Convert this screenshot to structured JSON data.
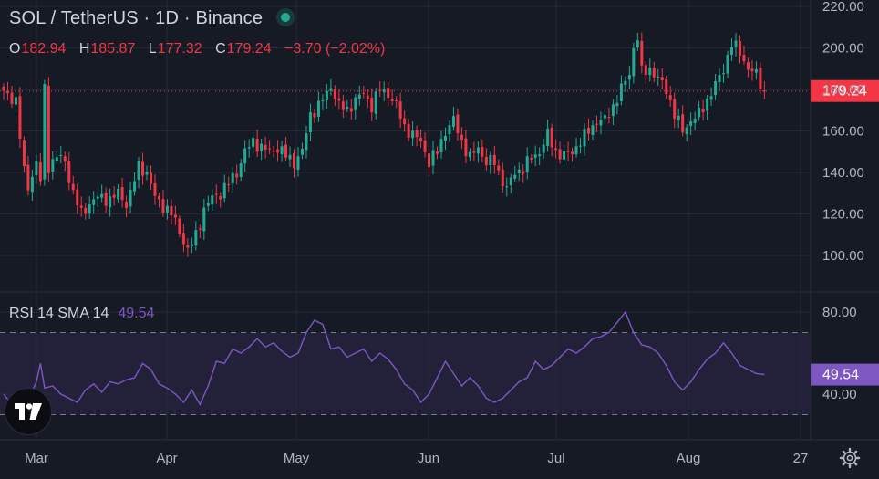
{
  "header": {
    "title": "SOL / TetherUS · 1D · Binance",
    "status_color": "#22ab94"
  },
  "ohlc": {
    "o_label": "O",
    "o_value": "182.94",
    "h_label": "H",
    "h_value": "185.87",
    "l_label": "L",
    "l_value": "177.32",
    "c_label": "C",
    "c_value": "179.24",
    "change": "−3.70 (−2.02%)"
  },
  "rsi_panel": {
    "label": "RSI 14 SMA 14",
    "value": "49.54"
  },
  "colors": {
    "up": "#22ab94",
    "down": "#f23645",
    "rsi_line": "#7e57c2",
    "grid": "#252a36",
    "text": "#b2b5be"
  },
  "icons": {
    "logo": "tradingview-logo-icon",
    "settings": "gear-icon"
  },
  "chart_data": [
    {
      "type": "candlestick",
      "symbol": "SOL / TetherUS",
      "interval": "1D",
      "exchange": "Binance",
      "ylim": [
        90,
        225
      ],
      "y_ticks": [
        "220.00",
        "200.00",
        "180.00",
        "160.00",
        "140.00",
        "120.00",
        "100.00"
      ],
      "x_ticks": [
        "Mar",
        "Apr",
        "May",
        "Jun",
        "Jul",
        "Aug",
        "27"
      ],
      "last_price": "179.24",
      "last_price_value": 179.24,
      "anchors": [
        [
          0,
          178
        ],
        [
          3,
          175
        ],
        [
          5,
          140
        ],
        [
          6,
          133
        ],
        [
          8,
          145
        ],
        [
          9,
          136
        ],
        [
          10,
          180
        ],
        [
          11,
          143
        ],
        [
          13,
          148
        ],
        [
          15,
          145
        ],
        [
          17,
          130
        ],
        [
          19,
          120
        ],
        [
          21,
          125
        ],
        [
          23,
          128
        ],
        [
          26,
          127
        ],
        [
          28,
          130
        ],
        [
          30,
          125
        ],
        [
          31,
          130
        ],
        [
          33,
          143
        ],
        [
          35,
          140
        ],
        [
          37,
          128
        ],
        [
          39,
          124
        ],
        [
          41,
          120
        ],
        [
          43,
          112
        ],
        [
          45,
          102
        ],
        [
          47,
          110
        ],
        [
          49,
          122
        ],
        [
          51,
          128
        ],
        [
          53,
          130
        ],
        [
          55,
          135
        ],
        [
          57,
          140
        ],
        [
          59,
          150
        ],
        [
          61,
          155
        ],
        [
          63,
          152
        ],
        [
          65,
          150
        ],
        [
          67,
          152
        ],
        [
          69,
          148
        ],
        [
          71,
          145
        ],
        [
          73,
          150
        ],
        [
          75,
          168
        ],
        [
          77,
          172
        ],
        [
          79,
          178
        ],
        [
          80,
          182
        ],
        [
          82,
          172
        ],
        [
          84,
          170
        ],
        [
          86,
          175
        ],
        [
          88,
          178
        ],
        [
          90,
          172
        ],
        [
          92,
          180
        ],
        [
          94,
          178
        ],
        [
          96,
          172
        ],
        [
          98,
          162
        ],
        [
          100,
          158
        ],
        [
          102,
          155
        ],
        [
          104,
          145
        ],
        [
          106,
          150
        ],
        [
          108,
          160
        ],
        [
          110,
          165
        ],
        [
          112,
          155
        ],
        [
          114,
          147
        ],
        [
          116,
          152
        ],
        [
          118,
          145
        ],
        [
          120,
          145
        ],
        [
          121,
          140
        ],
        [
          123,
          132
        ],
        [
          125,
          140
        ],
        [
          127,
          142
        ],
        [
          129,
          147
        ],
        [
          131,
          150
        ],
        [
          133,
          158
        ],
        [
          135,
          150
        ],
        [
          137,
          148
        ],
        [
          139,
          150
        ],
        [
          141,
          155
        ],
        [
          143,
          160
        ],
        [
          145,
          165
        ],
        [
          147,
          165
        ],
        [
          149,
          172
        ],
        [
          151,
          180
        ],
        [
          153,
          188
        ],
        [
          154,
          200
        ],
        [
          155,
          205
        ],
        [
          156,
          188
        ],
        [
          158,
          190
        ],
        [
          160,
          185
        ],
        [
          162,
          180
        ],
        [
          164,
          168
        ],
        [
          166,
          160
        ],
        [
          168,
          165
        ],
        [
          170,
          168
        ],
        [
          172,
          175
        ],
        [
          174,
          182
        ],
        [
          176,
          190
        ],
        [
          178,
          202
        ],
        [
          180,
          198
        ],
        [
          182,
          190
        ],
        [
          184,
          187
        ],
        [
          186,
          179
        ]
      ]
    },
    {
      "type": "line",
      "name": "RSI 14 SMA 14",
      "ylim": [
        25,
        85
      ],
      "y_ticks": [
        "80.00",
        "40.00"
      ],
      "bands": [
        70,
        30
      ],
      "current": "49.54",
      "current_value": 49.54,
      "points": [
        [
          0,
          40
        ],
        [
          2,
          35
        ],
        [
          4,
          42
        ],
        [
          6,
          37
        ],
        [
          8,
          46
        ],
        [
          9,
          55
        ],
        [
          10,
          43
        ],
        [
          12,
          44
        ],
        [
          14,
          40
        ],
        [
          16,
          38
        ],
        [
          18,
          36
        ],
        [
          20,
          42
        ],
        [
          22,
          45
        ],
        [
          24,
          41
        ],
        [
          26,
          46
        ],
        [
          28,
          45
        ],
        [
          30,
          47
        ],
        [
          32,
          48
        ],
        [
          34,
          55
        ],
        [
          36,
          52
        ],
        [
          38,
          45
        ],
        [
          40,
          43
        ],
        [
          42,
          40
        ],
        [
          44,
          36
        ],
        [
          46,
          42
        ],
        [
          48,
          35
        ],
        [
          50,
          44
        ],
        [
          52,
          56
        ],
        [
          54,
          55
        ],
        [
          56,
          62
        ],
        [
          58,
          60
        ],
        [
          60,
          63
        ],
        [
          62,
          67
        ],
        [
          64,
          63
        ],
        [
          66,
          65
        ],
        [
          68,
          61
        ],
        [
          70,
          58
        ],
        [
          72,
          60
        ],
        [
          74,
          70
        ],
        [
          76,
          76
        ],
        [
          78,
          74
        ],
        [
          80,
          62
        ],
        [
          82,
          63
        ],
        [
          84,
          58
        ],
        [
          86,
          60
        ],
        [
          88,
          62
        ],
        [
          90,
          56
        ],
        [
          92,
          60
        ],
        [
          94,
          57
        ],
        [
          96,
          52
        ],
        [
          98,
          45
        ],
        [
          100,
          42
        ],
        [
          102,
          36
        ],
        [
          104,
          40
        ],
        [
          106,
          48
        ],
        [
          108,
          56
        ],
        [
          110,
          50
        ],
        [
          112,
          44
        ],
        [
          114,
          48
        ],
        [
          116,
          44
        ],
        [
          118,
          38
        ],
        [
          120,
          36
        ],
        [
          122,
          38
        ],
        [
          124,
          42
        ],
        [
          126,
          46
        ],
        [
          128,
          48
        ],
        [
          130,
          56
        ],
        [
          132,
          52
        ],
        [
          134,
          54
        ],
        [
          136,
          58
        ],
        [
          138,
          62
        ],
        [
          140,
          60
        ],
        [
          142,
          63
        ],
        [
          144,
          67
        ],
        [
          146,
          68
        ],
        [
          148,
          70
        ],
        [
          150,
          75
        ],
        [
          152,
          80
        ],
        [
          154,
          70
        ],
        [
          156,
          64
        ],
        [
          158,
          63
        ],
        [
          160,
          60
        ],
        [
          162,
          54
        ],
        [
          164,
          46
        ],
        [
          166,
          42
        ],
        [
          168,
          46
        ],
        [
          170,
          52
        ],
        [
          172,
          57
        ],
        [
          174,
          60
        ],
        [
          176,
          65
        ],
        [
          178,
          60
        ],
        [
          180,
          54
        ],
        [
          182,
          52
        ],
        [
          184,
          50
        ],
        [
          186,
          49.54
        ]
      ]
    }
  ]
}
